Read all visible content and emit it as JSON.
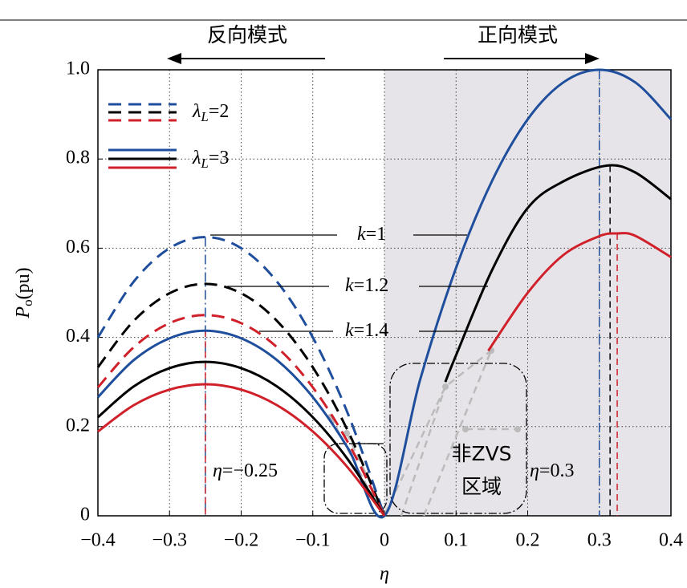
{
  "chart_data": {
    "type": "line",
    "header": {
      "left": "反向模式",
      "right": "正向模式"
    },
    "x_label": "η",
    "y_label": {
      "main": "P",
      "sub": "o",
      "unit": "(pu)"
    },
    "xlim": [
      -0.4,
      0.4
    ],
    "ylim": [
      0,
      1
    ],
    "xticks": [
      {
        "value": -0.4,
        "label": "−0.4"
      },
      {
        "value": -0.3,
        "label": "−0.3"
      },
      {
        "value": -0.2,
        "label": "−0.2"
      },
      {
        "value": -0.1,
        "label": "−0.1"
      },
      0,
      0.1,
      0.2,
      0.3,
      0.4
    ],
    "yticks": [
      0,
      0.2,
      0.4,
      0.6,
      0.8,
      {
        "value": 1,
        "label": "1.0"
      }
    ],
    "grid": true,
    "shaded_region": {
      "x": [
        0,
        0.4
      ],
      "color": "#e6e4e9"
    },
    "legend": [
      {
        "symbol": "λ",
        "sub": "L",
        "text": "=2",
        "dash": true
      },
      {
        "symbol": "λ",
        "sub": "L",
        "text": "=3",
        "dash": false
      }
    ],
    "series": [
      {
        "color": "#1f4e9c",
        "dash": true,
        "legend": 0,
        "x": [
          -0.4,
          -0.35,
          -0.3,
          -0.25,
          -0.2,
          -0.15,
          -0.1,
          -0.05,
          0
        ],
        "values": [
          0.4,
          0.525,
          0.6,
          0.625,
          0.6,
          0.525,
          0.4,
          0.225,
          0
        ]
      },
      {
        "color": "#000000",
        "dash": true,
        "legend": 0,
        "x": [
          -0.4,
          -0.35,
          -0.3,
          -0.25,
          -0.2,
          -0.15,
          -0.1,
          -0.05,
          0
        ],
        "values": [
          0.333,
          0.437,
          0.499,
          0.52,
          0.499,
          0.437,
          0.333,
          0.187,
          0
        ]
      },
      {
        "color": "#d0202a",
        "dash": true,
        "legend": 0,
        "x": [
          -0.4,
          -0.35,
          -0.3,
          -0.25,
          -0.2,
          -0.15,
          -0.1,
          -0.05,
          0
        ],
        "values": [
          0.288,
          0.378,
          0.432,
          0.45,
          0.432,
          0.378,
          0.288,
          0.162,
          0
        ]
      },
      {
        "color": "#1f4e9c",
        "dash": false,
        "legend": 1,
        "x": [
          -0.4,
          -0.35,
          -0.3,
          -0.25,
          -0.2,
          -0.15,
          -0.1,
          -0.05,
          0,
          0.05,
          0.1,
          0.15,
          0.2,
          0.25,
          0.3,
          0.35,
          0.4
        ],
        "values": [
          0.266,
          0.349,
          0.398,
          0.415,
          0.398,
          0.349,
          0.266,
          0.149,
          0,
          0.306,
          0.556,
          0.75,
          0.889,
          0.972,
          1,
          0.972,
          0.889
        ]
      },
      {
        "color": "#000000",
        "dash": false,
        "legend": 1,
        "x": [
          -0.4,
          -0.35,
          -0.3,
          -0.25,
          -0.2,
          -0.15,
          -0.1,
          -0.05,
          0,
          0.05,
          0.085,
          0.1,
          0.15,
          0.2,
          0.25,
          0.31,
          0.35,
          0.4
        ],
        "values": [
          0.221,
          0.29,
          0.331,
          0.345,
          0.331,
          0.29,
          0.221,
          0.124,
          0,
          null,
          0.3,
          0.36,
          0.55,
          0.69,
          0.75,
          0.785,
          0.77,
          0.71
        ]
      },
      {
        "color": "#d0202a",
        "dash": false,
        "legend": 1,
        "x": [
          -0.4,
          -0.35,
          -0.3,
          -0.25,
          -0.2,
          -0.15,
          -0.1,
          -0.05,
          0,
          0.1,
          0.145,
          0.2,
          0.25,
          0.3,
          0.325,
          0.35,
          0.4
        ],
        "values": [
          0.189,
          0.248,
          0.283,
          0.295,
          0.283,
          0.248,
          0.189,
          0.106,
          0,
          null,
          0.37,
          0.5,
          0.585,
          0.627,
          0.633,
          0.628,
          0.58
        ]
      }
    ],
    "peak_lines": [
      {
        "x": -0.25,
        "top": 0.625,
        "color": "#1f4e9c",
        "style": "dashdot"
      },
      {
        "x": -0.25,
        "top": 0.415,
        "color": "#d0202a",
        "style": "dashed"
      },
      {
        "x": 0.3,
        "top": 1,
        "color": "#1f4e9c",
        "style": "dashdot"
      },
      {
        "x": 0.315,
        "top": 0.785,
        "color": "#000000",
        "style": "dashed"
      },
      {
        "x": 0.325,
        "top": 0.633,
        "color": "#d0202a",
        "style": "dashed"
      }
    ],
    "annotations": [
      {
        "var": "k",
        "text": "=1"
      },
      {
        "var": "k",
        "text": "=1.2"
      },
      {
        "var": "k",
        "text": "=1.4"
      },
      {
        "var": "η",
        "text": "=−0.25"
      },
      {
        "var": "η",
        "text": "=0.3"
      }
    ],
    "region_label": [
      "非ZVS",
      "区域"
    ]
  }
}
